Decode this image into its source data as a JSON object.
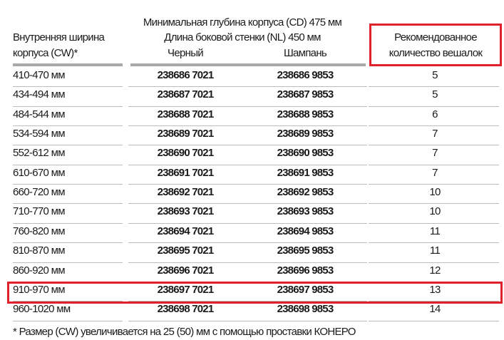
{
  "header": {
    "width_label_line1": "Внутренняя ширина",
    "width_label_line2": "корпуса (CW)*",
    "depth_label": "Минимальная глубина корпуса (CD) 475 мм",
    "side_wall_label": "Длина боковой стенки (NL)  450 мм",
    "black_label": "Черный",
    "champagne_label": "Шампань",
    "count_label_line1": "Рекомендованное",
    "count_label_line2": "количество вешалок"
  },
  "rows": [
    {
      "width": "410-470 мм",
      "black": "238686 7021",
      "champagne": "238686 9853",
      "count": "5"
    },
    {
      "width": "434-494 мм",
      "black": "238687 7021",
      "champagne": "238687 9853",
      "count": "5"
    },
    {
      "width": "484-544 мм",
      "black": "238688 7021",
      "champagne": "238688 9853",
      "count": "6"
    },
    {
      "width": "534-594 мм",
      "black": "238689 7021",
      "champagne": "238689 9853",
      "count": "7"
    },
    {
      "width": "552-612 мм",
      "black": "238690 7021",
      "champagne": "238690 9853",
      "count": "7"
    },
    {
      "width": "610-670 мм",
      "black": "238691 7021",
      "champagne": "238691 9853",
      "count": "7"
    },
    {
      "width": "660-720 мм",
      "black": "238692 7021",
      "champagne": "238692 9853",
      "count": "10"
    },
    {
      "width": "710-770 мм",
      "black": "238693 7021",
      "champagne": "238693 9853",
      "count": "10"
    },
    {
      "width": "760-820 мм",
      "black": "238694 7021",
      "champagne": "238694 9853",
      "count": "11"
    },
    {
      "width": "810-870 мм",
      "black": "238695 7021",
      "champagne": "238695 9853",
      "count": "11"
    },
    {
      "width": "860-920 мм",
      "black": "238696 7021",
      "champagne": "238696 9853",
      "count": "12"
    },
    {
      "width": "910-970 мм",
      "black": "238697 7021",
      "champagne": "238697 9853",
      "count": "13"
    },
    {
      "width": "960-1020 мм",
      "black": "238698 7021",
      "champagne": "238698 9853",
      "count": "14"
    }
  ],
  "highlighted_row": 11,
  "highlight_color": "#e0202a",
  "footnote": "* Размер (CW) увеличивается на 25 (50) мм с помощью проставки КОНЕРО"
}
